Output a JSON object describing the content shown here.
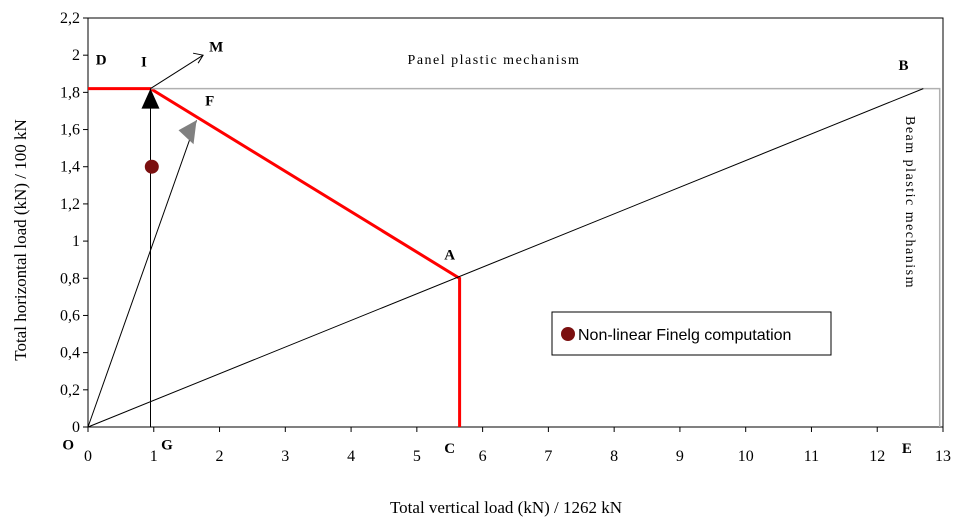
{
  "chart_data": {
    "type": "line",
    "title": "",
    "xlabel": "Total vertical load (kN) / 1262 kN",
    "ylabel": "Total horizontal load (kN) / 100 kN",
    "xlim": [
      0,
      13
    ],
    "ylim": [
      0,
      2.2
    ],
    "x_ticks": [
      "0",
      "1",
      "2",
      "3",
      "4",
      "5",
      "6",
      "7",
      "8",
      "9",
      "10",
      "11",
      "12",
      "13"
    ],
    "y_ticks": [
      "0",
      "0,2",
      "0,4",
      "0,6",
      "0,8",
      "1",
      "1,2",
      "1,4",
      "1,6",
      "1,8",
      "2",
      "2,2"
    ],
    "grid": false,
    "colors": {
      "interaction": "#ff0000",
      "mechanism_box": "#b0b0b0",
      "reference": "#000000",
      "point": "#7b1010",
      "arrow_black": "#000000",
      "arrow_grey": "#808080"
    },
    "series": [
      {
        "role": "interaction-curve",
        "color": "#ff0000",
        "points": [
          [
            0,
            1.82
          ],
          [
            0.95,
            1.82
          ],
          [
            5.65,
            0.8
          ],
          [
            5.65,
            0
          ]
        ]
      },
      {
        "role": "mechanism-boundary",
        "color": "#b0b0b0",
        "points": [
          [
            0.95,
            1.82
          ],
          [
            12.95,
            1.82
          ],
          [
            12.95,
            0
          ]
        ]
      },
      {
        "role": "line-OB",
        "color": "#000000",
        "points": [
          [
            0,
            0
          ],
          [
            12.7,
            1.82
          ]
        ]
      },
      {
        "role": "line-OF",
        "color": "#000000",
        "points": [
          [
            0,
            0
          ],
          [
            1.65,
            1.65
          ]
        ]
      },
      {
        "role": "line-GI",
        "color": "#000000",
        "points": [
          [
            0.95,
            0
          ],
          [
            0.95,
            1.82
          ]
        ]
      },
      {
        "role": "arrow-IM",
        "color": "#000000",
        "points": [
          [
            0.95,
            1.82
          ],
          [
            1.75,
            2.0
          ]
        ]
      }
    ],
    "markers": [
      {
        "type": "arrowhead",
        "color": "#000000",
        "at": [
          0.95,
          1.82
        ],
        "direction": "up"
      },
      {
        "type": "arrowhead",
        "color": "#808080",
        "at": [
          1.65,
          1.65
        ],
        "direction": "up-right"
      },
      {
        "type": "point",
        "color": "#7b1010",
        "at": [
          0.97,
          1.4
        ]
      }
    ],
    "point_labels": [
      {
        "text": "O",
        "x": -0.3,
        "y": -0.12
      },
      {
        "text": "D",
        "x": 0.2,
        "y": 1.95
      },
      {
        "text": "I",
        "x": 0.85,
        "y": 1.94
      },
      {
        "text": "M",
        "x": 1.95,
        "y": 2.02
      },
      {
        "text": "F",
        "x": 1.85,
        "y": 1.73
      },
      {
        "text": "B",
        "x": 12.4,
        "y": 1.92
      },
      {
        "text": "A",
        "x": 5.5,
        "y": 0.9
      },
      {
        "text": "G",
        "x": 1.2,
        "y": -0.12
      },
      {
        "text": "C",
        "x": 5.5,
        "y": -0.14
      },
      {
        "text": "E",
        "x": 12.45,
        "y": -0.14
      }
    ],
    "annotations": {
      "panel_mechanism": "Panel plastic mechanism",
      "beam_mechanism": "Beam plastic mechanism"
    },
    "legend": {
      "placement": "lower-right",
      "entries": [
        {
          "label": "Non-linear Finelg computation",
          "color": "#7b1010",
          "marker": "circle"
        }
      ]
    }
  }
}
